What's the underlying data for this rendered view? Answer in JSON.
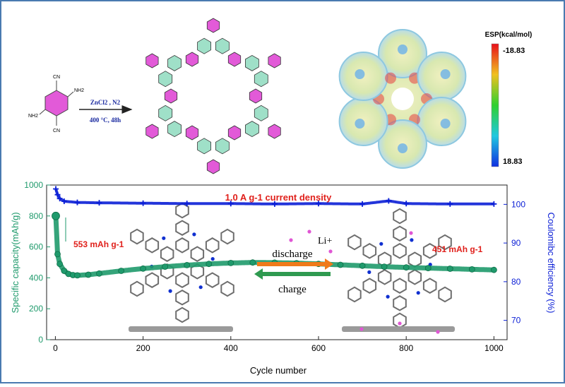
{
  "scheme": {
    "reactant_labels": {
      "cn_top": "CN",
      "nh2_top": "NH2",
      "nh2_bottom": "NH2",
      "cn_bottom": "CN"
    },
    "reagent": "ZnCl2 , N2",
    "conditions": "400 °C, 48h"
  },
  "esp_map": {
    "title": "ESP(kcal/mol)",
    "max_label": "-18.83",
    "min_label": "18.83"
  },
  "annotations": {
    "current_density": "1.0 A g-1 current density",
    "initial_capacity": "553 mAh g-1",
    "final_capacity": "451 mAh g-1",
    "discharge": "discharge",
    "charge": "charge",
    "li_ion": "Li+"
  },
  "colors": {
    "capacity": "#1f9a6c",
    "efficiency": "#0b1fd6",
    "annotation_red": "#e0201b",
    "arrow_orange": "#f07a1a",
    "arrow_green": "#2f9a50",
    "triazine_fill": "#9fe0c8",
    "benzene_fill": "#e25ad8"
  },
  "chart_data": {
    "type": "scatter",
    "title": "1.0 A g-1 current density",
    "xlabel": "Cycle number",
    "ylabel_left": "Specific capacity(mAh/g)",
    "ylabel_right": "Coulomibc efficiency (%)",
    "xlim": [
      -20,
      1030
    ],
    "ylim_left": [
      0,
      1000
    ],
    "ylim_right": [
      65,
      105
    ],
    "xticks": [
      0,
      200,
      400,
      600,
      800,
      1000
    ],
    "yticks_left": [
      0,
      200,
      400,
      600,
      800,
      1000
    ],
    "yticks_right": [
      70,
      80,
      90,
      100
    ],
    "series": [
      {
        "name": "Specific capacity",
        "axis": "left",
        "x": [
          1,
          5,
          10,
          20,
          30,
          40,
          50,
          75,
          100,
          150,
          200,
          250,
          300,
          350,
          400,
          450,
          500,
          550,
          600,
          650,
          700,
          750,
          800,
          850,
          900,
          950,
          1000
        ],
        "values": [
          800,
          553,
          490,
          445,
          425,
          418,
          416,
          420,
          428,
          445,
          460,
          472,
          482,
          490,
          496,
          499,
          498,
          495,
          490,
          484,
          478,
          472,
          467,
          463,
          459,
          455,
          451
        ]
      },
      {
        "name": "Coulombic efficiency",
        "axis": "right",
        "x": [
          1,
          5,
          10,
          20,
          50,
          100,
          200,
          300,
          400,
          500,
          600,
          700,
          760,
          800,
          900,
          1000
        ],
        "values": [
          104,
          102.5,
          101.5,
          100.8,
          100.5,
          100.4,
          100.3,
          100.2,
          100.2,
          100.1,
          100.2,
          100.1,
          100.9,
          100.2,
          100.1,
          100.1
        ]
      }
    ]
  }
}
